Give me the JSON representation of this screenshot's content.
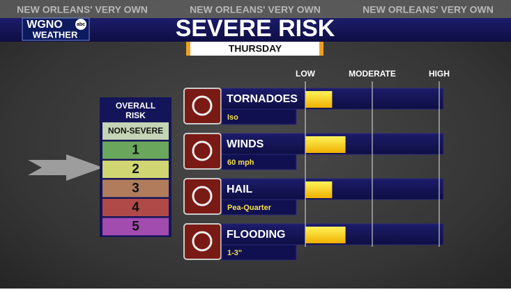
{
  "header": {
    "tagline": "NEW ORLEANS' VERY OWN",
    "logo": {
      "station": "WGNO",
      "network": "abc",
      "brand": "WEATHER"
    },
    "title": "SEVERE RISK",
    "day": "THURSDAY"
  },
  "overall_risk": {
    "title": "OVERALL RISK",
    "levels": [
      "NON-SEVERE",
      "1",
      "2",
      "3",
      "4",
      "5"
    ],
    "selected": 2
  },
  "scale": {
    "ticks": [
      {
        "value": 1,
        "label": "LOW"
      },
      {
        "value": 2,
        "label": "MODERATE"
      },
      {
        "value": 3,
        "label": "HIGH"
      }
    ]
  },
  "hazards": [
    {
      "name": "TORNADOES",
      "detail": "Iso",
      "level": 1.4
    },
    {
      "name": "WINDS",
      "detail": "60 mph",
      "level": 1.6
    },
    {
      "name": "HAIL",
      "detail": "Pea-Quarter",
      "level": 1.4
    },
    {
      "name": "FLOODING",
      "detail": "1-3\"",
      "level": 1.6
    }
  ]
}
